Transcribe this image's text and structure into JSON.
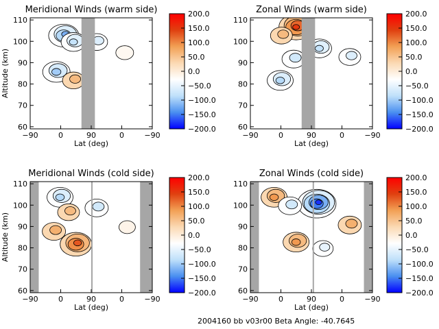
{
  "footer": {
    "text": "2004160 bb v03r00   Beta Angle: -40.7645"
  },
  "colorbar": {
    "ticks": [
      "200.0",
      "150.0",
      "100.0",
      "50.0",
      "0.0",
      "−50.0",
      "−100.0",
      "−150.0",
      "−200.0"
    ],
    "range": [
      -200,
      200
    ],
    "colors": [
      "#0000ff",
      "#4a8ff0",
      "#bfe0fa",
      "#ffffff",
      "#fbd9b3",
      "#f2a055",
      "#e04010",
      "#ff0000"
    ]
  },
  "chart_data": [
    {
      "type": "heatmap",
      "title": "Meridional Winds (warm side)",
      "xlabel": "Lat (deg)",
      "ylabel": "Altitude (km)",
      "x_ticks": [
        "−90",
        "0",
        "90",
        "0",
        "−90"
      ],
      "y_ticks": [
        60,
        70,
        80,
        90,
        100,
        110
      ],
      "ylim": [
        59,
        111
      ],
      "data_gaps": [
        {
          "x_from": 0.42,
          "x_to": 0.53
        }
      ],
      "features": [
        {
          "sign": "negative",
          "lat_frac": 0.22,
          "alt": 86,
          "strength": -100
        },
        {
          "sign": "negative",
          "lat_frac": 0.28,
          "alt": 103,
          "strength": -120
        },
        {
          "sign": "negative",
          "lat_frac": 0.36,
          "alt": 100,
          "strength": -80
        },
        {
          "sign": "negative",
          "lat_frac": 0.55,
          "alt": 100,
          "strength": -60
        },
        {
          "sign": "positive",
          "lat_frac": 0.36,
          "alt": 82,
          "strength": 60
        },
        {
          "sign": "negative",
          "lat_frac": 0.78,
          "alt": 95,
          "strength": -30
        }
      ]
    },
    {
      "type": "heatmap",
      "title": "Zonal Winds (warm side)",
      "xlabel": "Lat (deg)",
      "ylabel": "",
      "x_ticks": [
        "−90",
        "0",
        "90",
        "0",
        "−90"
      ],
      "y_ticks": [
        60,
        70,
        80,
        90,
        100,
        110
      ],
      "ylim": [
        59,
        111
      ],
      "data_gaps": [
        {
          "x_from": 0.42,
          "x_to": 0.53
        }
      ],
      "features": [
        {
          "sign": "positive",
          "lat_frac": 0.38,
          "alt": 107,
          "strength": 150
        },
        {
          "sign": "positive",
          "lat_frac": 0.26,
          "alt": 103,
          "strength": 60
        },
        {
          "sign": "negative",
          "lat_frac": 0.25,
          "alt": 82,
          "strength": -90
        },
        {
          "sign": "negative",
          "lat_frac": 0.36,
          "alt": 92,
          "strength": -70
        },
        {
          "sign": "negative",
          "lat_frac": 0.57,
          "alt": 97,
          "strength": -80
        },
        {
          "sign": "negative",
          "lat_frac": 0.82,
          "alt": 93,
          "strength": -60
        }
      ]
    },
    {
      "type": "heatmap",
      "title": "Meridional Winds (cold side)",
      "xlabel": "Lat (deg)",
      "ylabel": "Altitude (km)",
      "x_ticks": [
        "−90",
        "0",
        "90",
        "0",
        "−90"
      ],
      "y_ticks": [
        60,
        70,
        80,
        90,
        100,
        110
      ],
      "ylim": [
        59,
        111
      ],
      "data_gaps": [
        {
          "x_from": 0.0,
          "x_to": 0.07
        },
        {
          "x_from": 0.5,
          "x_to": 0.51
        },
        {
          "x_from": 0.9,
          "x_to": 1.0
        }
      ],
      "features": [
        {
          "sign": "positive",
          "lat_frac": 0.38,
          "alt": 82,
          "strength": 130
        },
        {
          "sign": "positive",
          "lat_frac": 0.2,
          "alt": 88,
          "strength": 70
        },
        {
          "sign": "negative",
          "lat_frac": 0.25,
          "alt": 104,
          "strength": -90
        },
        {
          "sign": "negative",
          "lat_frac": 0.55,
          "alt": 99,
          "strength": -70
        },
        {
          "sign": "positive",
          "lat_frac": 0.32,
          "alt": 97,
          "strength": 60
        },
        {
          "sign": "negative",
          "lat_frac": 0.8,
          "alt": 90,
          "strength": -20
        }
      ]
    },
    {
      "type": "heatmap",
      "title": "Zonal Winds (cold side)",
      "xlabel": "Lat (deg)",
      "ylabel": "",
      "x_ticks": [
        "−90",
        "0",
        "90",
        "0",
        "−90"
      ],
      "y_ticks": [
        60,
        70,
        80,
        90,
        100,
        110
      ],
      "ylim": [
        59,
        111
      ],
      "data_gaps": [
        {
          "x_from": 0.0,
          "x_to": 0.07
        },
        {
          "x_from": 0.51,
          "x_to": 0.52
        },
        {
          "x_from": 0.93,
          "x_to": 1.0
        }
      ],
      "features": [
        {
          "sign": "negative",
          "lat_frac": 0.55,
          "alt": 101,
          "strength": -180
        },
        {
          "sign": "positive",
          "lat_frac": 0.2,
          "alt": 104,
          "strength": 90
        },
        {
          "sign": "positive",
          "lat_frac": 0.38,
          "alt": 83,
          "strength": 90
        },
        {
          "sign": "negative",
          "lat_frac": 0.33,
          "alt": 100,
          "strength": -70
        },
        {
          "sign": "positive",
          "lat_frac": 0.82,
          "alt": 91,
          "strength": 70
        },
        {
          "sign": "negative",
          "lat_frac": 0.6,
          "alt": 80,
          "strength": -50
        }
      ]
    }
  ]
}
